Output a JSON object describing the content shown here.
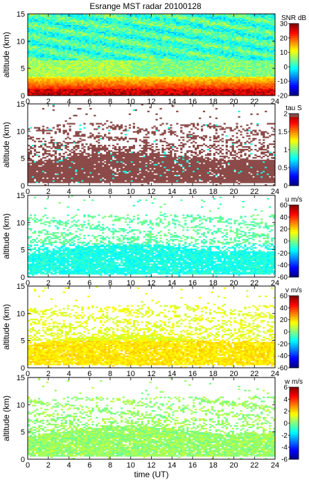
{
  "title": "Esrange MST radar 20100128",
  "chart_data": [
    {
      "type": "heatmap",
      "ylabel": "altitude (km)",
      "xlabel": "",
      "xlim": [
        0,
        24
      ],
      "ylim": [
        0,
        15
      ],
      "xticks": [
        "0",
        "2",
        "4",
        "6",
        "8",
        "10",
        "12",
        "14",
        "16",
        "18",
        "20",
        "22",
        "24"
      ],
      "yticks": [
        "0",
        "5",
        "10",
        "15"
      ],
      "colorbar": {
        "label": "SNR dB",
        "range": [
          -20,
          30
        ],
        "ticks": [
          "30",
          "20",
          "10",
          "0",
          "-10",
          "-20"
        ]
      },
      "field": "snr",
      "description_values": {
        "near_ground_max_db": 30,
        "upper_background_db": 0
      }
    },
    {
      "type": "heatmap",
      "ylabel": "altitude (km)",
      "xlabel": "",
      "xlim": [
        0,
        24
      ],
      "ylim": [
        0,
        15
      ],
      "xticks": [
        "0",
        "2",
        "4",
        "6",
        "8",
        "10",
        "12",
        "14",
        "16",
        "18",
        "20",
        "22",
        "24"
      ],
      "yticks": [
        "0",
        "5",
        "10",
        "15"
      ],
      "colorbar": {
        "label": "tau S",
        "range": [
          0,
          2
        ],
        "ticks": [
          "2",
          "1.5",
          "1",
          "0.5",
          "0"
        ]
      },
      "field": "tau",
      "description_values": {
        "typical_value": 2.0
      }
    },
    {
      "type": "heatmap",
      "ylabel": "altitude (km)",
      "xlabel": "",
      "xlim": [
        0,
        24
      ],
      "ylim": [
        0,
        15
      ],
      "xticks": [
        "0",
        "2",
        "4",
        "6",
        "8",
        "10",
        "12",
        "14",
        "16",
        "18",
        "20",
        "22",
        "24"
      ],
      "yticks": [
        "0",
        "5",
        "10",
        "15"
      ],
      "colorbar": {
        "label": "u m/s",
        "range": [
          -60,
          60
        ],
        "ticks": [
          "60",
          "40",
          "20",
          "0",
          "-20",
          "-40",
          "-60"
        ]
      },
      "field": "u",
      "description_values": {
        "typical_value": -10
      }
    },
    {
      "type": "heatmap",
      "ylabel": "altitude (km)",
      "xlabel": "",
      "xlim": [
        0,
        24
      ],
      "ylim": [
        0,
        15
      ],
      "xticks": [
        "0",
        "2",
        "4",
        "6",
        "8",
        "10",
        "12",
        "14",
        "16",
        "18",
        "20",
        "22",
        "24"
      ],
      "yticks": [
        "0",
        "5",
        "10",
        "15"
      ],
      "colorbar": {
        "label": "v m/s",
        "range": [
          -60,
          60
        ],
        "ticks": [
          "60",
          "40",
          "20",
          "0",
          "-20",
          "-40",
          "-60"
        ]
      },
      "field": "v",
      "description_values": {
        "typical_value": 10
      }
    },
    {
      "type": "heatmap",
      "ylabel": "altitude (km)",
      "xlabel": "time (UT)",
      "xlim": [
        0,
        24
      ],
      "ylim": [
        0,
        15
      ],
      "xticks": [
        "0",
        "2",
        "4",
        "6",
        "8",
        "10",
        "12",
        "14",
        "16",
        "18",
        "20",
        "22",
        "24"
      ],
      "yticks": [
        "0",
        "5",
        "10",
        "15"
      ],
      "colorbar": {
        "label": "w m/s",
        "range": [
          -6,
          6
        ],
        "ticks": [
          "6",
          "4",
          "2",
          "0",
          "-2",
          "-4",
          "-6"
        ]
      },
      "field": "w",
      "description_values": {
        "typical_value": 0
      }
    }
  ]
}
